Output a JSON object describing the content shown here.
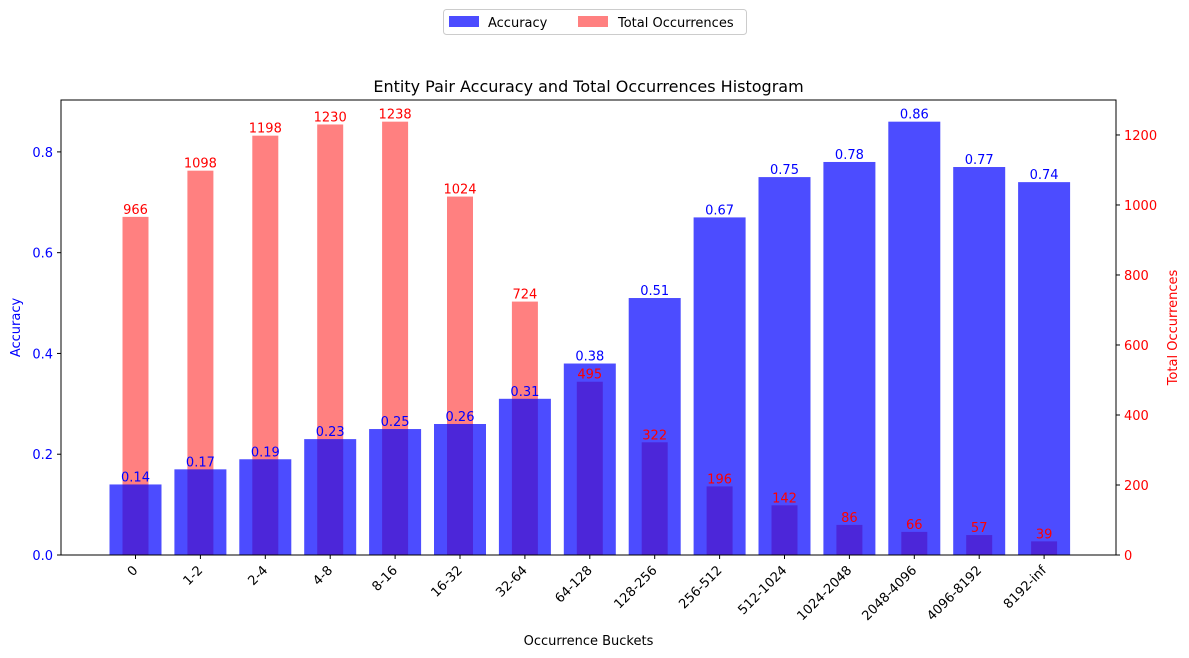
{
  "chart_data": {
    "type": "bar",
    "title": "Entity Pair Accuracy and Total Occurrences Histogram",
    "xlabel": "Occurrence Buckets",
    "ylabel_left": "Accuracy",
    "ylabel_right": "Total Occurrences",
    "categories": [
      "0",
      "1-2",
      "2-4",
      "4-8",
      "8-16",
      "16-32",
      "32-64",
      "64-128",
      "128-256",
      "256-512",
      "512-1024",
      "1024-2048",
      "2048-4096",
      "4096-8192",
      "8192-inf"
    ],
    "series": [
      {
        "name": "Accuracy",
        "axis": "left",
        "color": "#4B4BFF",
        "label_color": "#0000FF",
        "values": [
          0.14,
          0.17,
          0.19,
          0.23,
          0.25,
          0.26,
          0.31,
          0.38,
          0.51,
          0.67,
          0.75,
          0.78,
          0.86,
          0.77,
          0.74
        ]
      },
      {
        "name": "Total Occurrences",
        "axis": "right",
        "color": "#FF8080",
        "label_color": "#FF0000",
        "values": [
          966,
          1098,
          1198,
          1230,
          1238,
          1024,
          724,
          495,
          322,
          196,
          142,
          86,
          66,
          57,
          39
        ]
      }
    ],
    "ylim_left": [
      0,
      0.903
    ],
    "ylim_right": [
      0,
      1299.9
    ],
    "yticks_left": [
      "0.0",
      "0.2",
      "0.4",
      "0.6",
      "0.8"
    ],
    "yticks_right": [
      "0",
      "200",
      "400",
      "600",
      "800",
      "1000",
      "1200"
    ],
    "left_axis_color": "#0000FF",
    "right_axis_color": "#FF0000",
    "grid": false,
    "legend_position": "top-center"
  }
}
